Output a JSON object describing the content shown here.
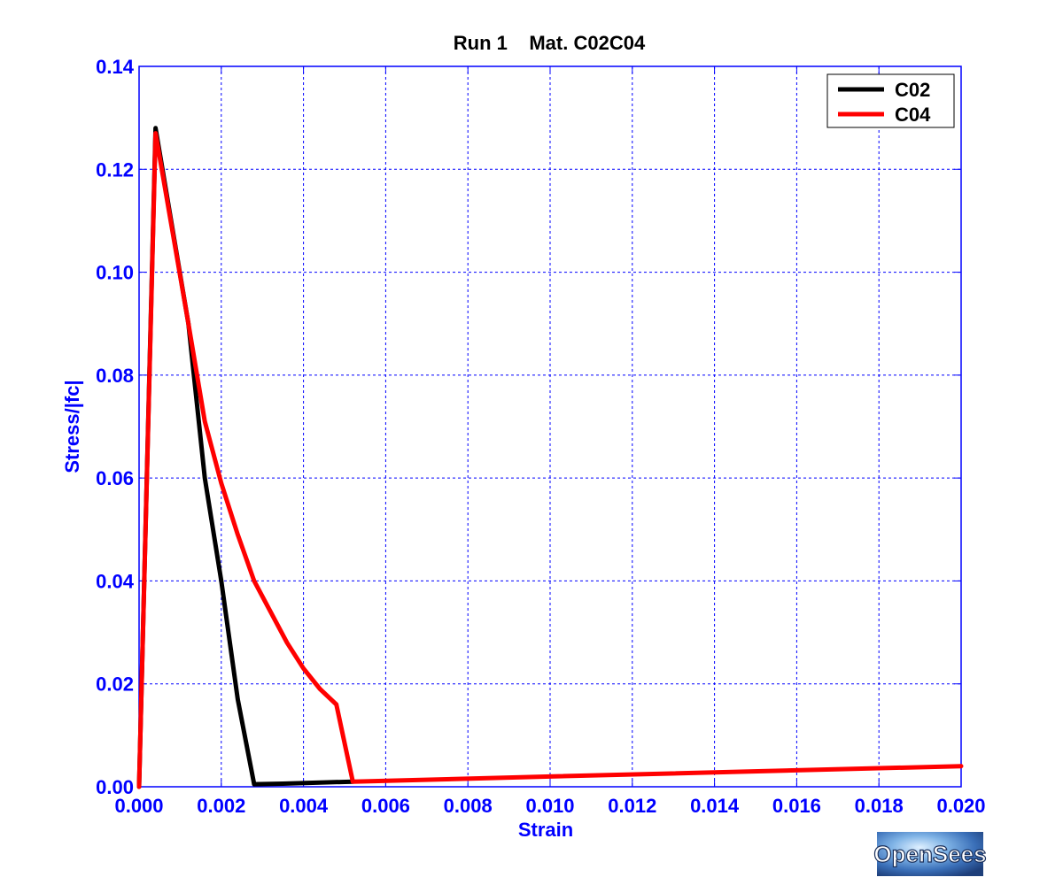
{
  "chart_data": {
    "type": "line",
    "title": "Run 1    Mat. C02C04",
    "xlabel": "Strain",
    "ylabel": "Stress/|fc|",
    "xlim": [
      0.0,
      0.02
    ],
    "ylim": [
      0.0,
      0.14
    ],
    "xticks": [
      "0.000",
      "0.002",
      "0.004",
      "0.006",
      "0.008",
      "0.010",
      "0.012",
      "0.014",
      "0.016",
      "0.018",
      "0.020"
    ],
    "yticks": [
      "0.00",
      "0.02",
      "0.04",
      "0.06",
      "0.08",
      "0.10",
      "0.12",
      "0.14"
    ],
    "grid": true,
    "legend_position": "top-right",
    "series": [
      {
        "name": "C02",
        "color": "#000000",
        "points": [
          [
            0.0,
            0.0
          ],
          [
            0.0004,
            0.128
          ],
          [
            0.0012,
            0.09
          ],
          [
            0.0016,
            0.06
          ],
          [
            0.002,
            0.04
          ],
          [
            0.0024,
            0.017
          ],
          [
            0.0028,
            0.0005
          ],
          [
            0.0035,
            0.0006
          ],
          [
            0.0052,
            0.001
          ]
        ]
      },
      {
        "name": "C04",
        "color": "#ff0000",
        "points": [
          [
            0.0,
            0.0
          ],
          [
            0.0004,
            0.127
          ],
          [
            0.0012,
            0.09
          ],
          [
            0.0016,
            0.071
          ],
          [
            0.002,
            0.059
          ],
          [
            0.0024,
            0.049
          ],
          [
            0.0028,
            0.04
          ],
          [
            0.0036,
            0.028
          ],
          [
            0.004,
            0.023
          ],
          [
            0.0044,
            0.019
          ],
          [
            0.0048,
            0.016
          ],
          [
            0.0052,
            0.001
          ],
          [
            0.01,
            0.002
          ],
          [
            0.02,
            0.004
          ]
        ]
      }
    ]
  },
  "logo": {
    "text": "OpenSees"
  }
}
